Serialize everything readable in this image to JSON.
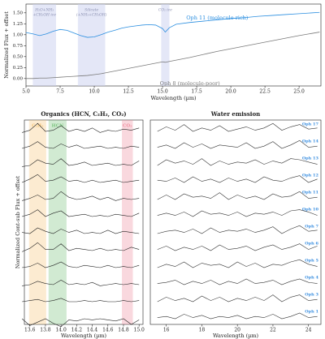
{
  "chart_data": [
    {
      "type": "line",
      "ylabel": "Normalized Flux + offset",
      "xlabel": "Wavelength (µm)",
      "xlim": [
        5,
        26.6
      ],
      "ylim": [
        -0.17,
        1.7
      ],
      "xticks": [
        {
          "value": 5,
          "label": "5.0"
        },
        {
          "value": 7.5,
          "label": "7.5"
        },
        {
          "value": 10,
          "label": "10.0"
        },
        {
          "value": 12.5,
          "label": "12.5"
        },
        {
          "value": 15,
          "label": "15.0"
        },
        {
          "value": 17.5,
          "label": "17.5"
        },
        {
          "value": 20,
          "label": "20.0"
        },
        {
          "value": 22.5,
          "label": "22.5"
        },
        {
          "value": 25,
          "label": "25.0"
        }
      ],
      "yticks": [
        {
          "value": 0,
          "label": "0.00"
        },
        {
          "value": 0.25,
          "label": "0.25"
        },
        {
          "value": 0.5,
          "label": "0.50"
        },
        {
          "value": 0.75,
          "label": "0.75"
        },
        {
          "value": 1,
          "label": "1.00"
        },
        {
          "value": 1.25,
          "label": "1.25"
        },
        {
          "value": 1.5,
          "label": "1.50"
        }
      ],
      "bands": [
        {
          "label": [
            "H₂O+NH₃",
            "+CH₃OH ice"
          ],
          "xlim": [
            5.5,
            7.2
          ],
          "color": "#c9cff0"
        },
        {
          "label": [
            "Silicate",
            "(+NH₃+CH₃OH)"
          ],
          "xlim": [
            8.8,
            10.8
          ],
          "color": "#c9cff0"
        },
        {
          "label": [
            "CO₂ ice"
          ],
          "xlim": [
            14.9,
            15.5
          ],
          "color": "#c9cff0"
        }
      ],
      "x": [
        5,
        5.5,
        6,
        6.5,
        7,
        7.5,
        8,
        8.5,
        9,
        9.5,
        10,
        10.5,
        11,
        11.5,
        12,
        12.5,
        13,
        13.5,
        14,
        14.5,
        15,
        15.2,
        15.5,
        16,
        17,
        18,
        19,
        20,
        21,
        22,
        23,
        24,
        25,
        26.5
      ],
      "series": [
        {
          "name": "Oph 11 (molecule-rich)",
          "color": "#2a8ee0",
          "values": [
            1.05,
            1.02,
            0.98,
            1.02,
            1.08,
            1.12,
            1.1,
            1.04,
            0.98,
            0.94,
            0.95,
            1.0,
            1.06,
            1.1,
            1.15,
            1.18,
            1.2,
            1.22,
            1.23,
            1.22,
            1.14,
            1.06,
            1.16,
            1.24,
            1.28,
            1.31,
            1.34,
            1.37,
            1.39,
            1.42,
            1.44,
            1.46,
            1.48,
            1.51
          ]
        },
        {
          "name": "Oph 8 (molecule-poor)",
          "color": "#7a7a7a",
          "values": [
            0.0,
            0.0,
            0.01,
            0.01,
            0.02,
            0.03,
            0.04,
            0.05,
            0.06,
            0.07,
            0.09,
            0.11,
            0.14,
            0.17,
            0.2,
            0.23,
            0.26,
            0.29,
            0.32,
            0.35,
            0.38,
            0.37,
            0.39,
            0.42,
            0.48,
            0.55,
            0.62,
            0.68,
            0.74,
            0.8,
            0.86,
            0.92,
            0.98,
            1.06
          ]
        }
      ]
    },
    {
      "type": "line",
      "offset": true,
      "title": "Organics (HCN, C₂H₂, CO₂)",
      "xlabel": "Wavelength (µm)",
      "ylabel": "Normalized Cont-sub Flux + offset",
      "xlim": [
        13.53,
        15.05
      ],
      "xticks": [
        13.6,
        13.8,
        {
          "value": 14,
          "label": "14.0"
        },
        14.2,
        14.4,
        14.6,
        14.8,
        {
          "value": 15,
          "label": "15.0"
        }
      ],
      "color": "#222222",
      "bands": [
        {
          "label": [
            "C₂H₂"
          ],
          "xlim": [
            13.59,
            13.81
          ],
          "color": "#f7c77a"
        },
        {
          "label": [
            "HCN"
          ],
          "xlim": [
            13.84,
            14.07
          ],
          "color": "#7cc47f"
        },
        {
          "label": [
            "CO₂"
          ],
          "xlim": [
            14.78,
            14.92
          ],
          "color": "#ef8fa0"
        }
      ],
      "x": [
        13.5,
        13.6,
        13.7,
        13.8,
        13.9,
        14.0,
        14.1,
        14.2,
        14.3,
        14.4,
        14.5,
        14.6,
        14.7,
        14.8,
        14.9,
        15.0
      ],
      "series": [
        {
          "values": [
            0.1,
            0.3,
            0.9,
            0.2,
            0.3,
            0.7,
            0.2,
            0.4,
            0.2,
            0.5,
            0.1,
            0.3,
            0.2,
            0.4,
            0.3,
            0.5
          ]
        },
        {
          "values": [
            0.2,
            0.4,
            0.8,
            0.3,
            0.2,
            0.6,
            0.3,
            0.5,
            0.2,
            0.3,
            0.4,
            0.2,
            0.3,
            0.2,
            0.4,
            0.3
          ]
        },
        {
          "values": [
            0.1,
            0.2,
            0.7,
            0.4,
            0.3,
            0.8,
            0.2,
            0.3,
            0.5,
            0.2,
            0.3,
            0.4,
            0.2,
            0.3,
            0.2,
            0.6
          ]
        },
        {
          "values": [
            0.2,
            0.5,
            0.9,
            0.3,
            0.4,
            0.7,
            0.3,
            0.4,
            0.2,
            0.4,
            0.2,
            0.3,
            0.4,
            0.2,
            0.3,
            0.4
          ]
        },
        {
          "values": [
            0.1,
            0.3,
            0.6,
            0.2,
            0.3,
            0.9,
            0.4,
            0.2,
            0.3,
            0.5,
            0.2,
            0.4,
            0.1,
            0.3,
            0.2,
            0.3
          ]
        },
        {
          "values": [
            0.2,
            0.4,
            0.8,
            0.2,
            0.5,
            0.7,
            0.2,
            0.3,
            0.4,
            0.2,
            0.3,
            0.2,
            0.4,
            0.3,
            0.2,
            0.5
          ]
        },
        {
          "values": [
            0.3,
            0.2,
            0.7,
            0.4,
            0.2,
            0.6,
            0.3,
            0.5,
            0.2,
            0.3,
            0.2,
            0.5,
            0.2,
            0.4,
            0.3,
            0.2
          ]
        },
        {
          "values": [
            0.1,
            0.4,
            0.9,
            0.3,
            0.3,
            0.8,
            0.2,
            0.4,
            0.3,
            0.2,
            0.4,
            0.2,
            0.3,
            0.2,
            0.5,
            0.3
          ]
        },
        {
          "values": [
            0.2,
            0.3,
            0.6,
            0.2,
            0.4,
            0.7,
            0.3,
            0.2,
            0.4,
            0.3,
            0.2,
            0.4,
            0.2,
            0.3,
            0.2,
            0.4
          ]
        },
        {
          "values": [
            0.1,
            0.2,
            0.5,
            0.3,
            0.2,
            0.6,
            0.2,
            0.3,
            0.2,
            0.4,
            0.1,
            0.2,
            0.3,
            0.2,
            0.3,
            0.2
          ]
        },
        {
          "values": [
            0.2,
            0.3,
            0.4,
            0.2,
            0.3,
            0.5,
            0.2,
            0.2,
            0.3,
            0.2,
            0.3,
            0.2,
            0.2,
            0.3,
            0.2,
            0.3
          ]
        },
        {
          "values": [
            0.2,
            -0.4,
            -0.1,
            0.2,
            -0.2,
            -0.5,
            0.1,
            0.0,
            0.2,
            0.1,
            0.2,
            0.1,
            0.0,
            0.2,
            -0.3,
            0.1
          ]
        }
      ]
    },
    {
      "type": "line",
      "offset": true,
      "title": "Water emission",
      "xlabel": "Wavelength (µm)",
      "xlim": [
        15.1,
        24.7
      ],
      "xticks": [
        16,
        18,
        20,
        22,
        24
      ],
      "color": "#333333",
      "name_color": "#3b8fe0",
      "x": [
        15.5,
        16,
        16.5,
        17,
        17.5,
        18,
        18.5,
        19,
        19.5,
        20,
        20.5,
        21,
        21.5,
        22,
        22.5,
        23,
        23.5,
        24,
        24.5
      ],
      "series": [
        {
          "name": "Oph 17",
          "values": [
            0.2,
            0.6,
            0.3,
            0.8,
            0.2,
            0.5,
            0.3,
            0.7,
            0.2,
            0.4,
            0.6,
            0.3,
            0.5,
            0.9,
            0.3,
            0.6,
            0.8,
            0.4,
            0.5
          ]
        },
        {
          "name": "Oph 14",
          "values": [
            0.3,
            0.5,
            0.2,
            0.7,
            0.3,
            0.6,
            0.2,
            0.5,
            0.4,
            0.3,
            0.7,
            0.2,
            0.4,
            0.8,
            0.2,
            0.5,
            0.9,
            0.3,
            0.4
          ]
        },
        {
          "name": "Oph 13",
          "values": [
            0.2,
            0.7,
            0.4,
            0.6,
            0.3,
            0.8,
            0.2,
            0.6,
            0.3,
            0.5,
            0.4,
            0.7,
            0.3,
            0.6,
            0.4,
            0.8,
            0.7,
            0.5,
            0.3
          ]
        },
        {
          "name": "Oph 12",
          "values": [
            0.4,
            0.3,
            0.6,
            0.2,
            0.7,
            0.3,
            0.5,
            0.2,
            0.6,
            0.3,
            0.5,
            0.2,
            0.7,
            0.4,
            0.3,
            0.6,
            0.8,
            0.2,
            0.5
          ]
        },
        {
          "name": "Oph 11",
          "values": [
            0.2,
            0.6,
            0.2,
            0.7,
            0.4,
            0.5,
            0.3,
            0.8,
            0.2,
            0.6,
            0.3,
            0.5,
            0.2,
            0.7,
            0.4,
            0.5,
            0.9,
            0.3,
            0.4
          ]
        },
        {
          "name": "Oph 10",
          "values": [
            0.3,
            0.5,
            0.3,
            0.6,
            0.2,
            0.7,
            0.4,
            0.5,
            0.3,
            0.6,
            0.2,
            0.5,
            0.4,
            0.6,
            0.3,
            0.7,
            0.8,
            0.6,
            0.3
          ]
        },
        {
          "name": "Oph 7",
          "values": [
            0.2,
            0.4,
            0.5,
            0.3,
            0.6,
            0.2,
            0.7,
            0.3,
            0.5,
            0.4,
            0.6,
            0.3,
            0.5,
            0.8,
            0.2,
            0.6,
            0.9,
            0.4,
            0.5
          ]
        },
        {
          "name": "Oph 6",
          "values": [
            0.3,
            0.6,
            0.2,
            0.5,
            0.3,
            0.6,
            0.2,
            0.7,
            0.3,
            0.4,
            0.6,
            0.2,
            0.5,
            0.7,
            0.3,
            0.5,
            0.8,
            0.3,
            0.6
          ]
        },
        {
          "name": "Oph 5",
          "values": [
            0.2,
            0.5,
            0.3,
            0.7,
            0.2,
            0.6,
            0.4,
            0.5,
            0.2,
            0.7,
            0.3,
            0.6,
            0.2,
            0.5,
            0.4,
            0.7,
            0.9,
            0.5,
            0.3
          ]
        },
        {
          "name": "Oph 4",
          "values": [
            0.3,
            0.4,
            0.6,
            0.2,
            0.5,
            0.3,
            0.6,
            0.2,
            0.5,
            0.3,
            0.7,
            0.3,
            0.4,
            0.6,
            0.2,
            0.5,
            0.7,
            0.4,
            0.3
          ]
        },
        {
          "name": "Oph 3",
          "values": [
            0.2,
            0.6,
            0.3,
            0.5,
            0.2,
            0.7,
            0.3,
            0.6,
            0.2,
            0.5,
            0.3,
            0.6,
            0.3,
            0.8,
            0.2,
            0.6,
            0.8,
            0.3,
            0.4
          ]
        },
        {
          "name": "Oph 1",
          "values": [
            0.3,
            0.4,
            0.2,
            0.6,
            0.3,
            0.5,
            0.2,
            0.4,
            0.3,
            0.5,
            0.2,
            0.4,
            0.3,
            0.6,
            0.2,
            0.4,
            0.7,
            0.3,
            0.4
          ]
        }
      ]
    }
  ]
}
